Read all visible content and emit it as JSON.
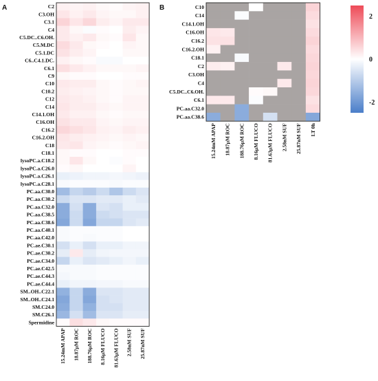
{
  "chart_data": [
    {
      "type": "heatmap",
      "panel_label": "A",
      "rows": [
        "C2",
        "C3.OH",
        "C3.1",
        "C4",
        "C5.DC..C6.OH.",
        "C5.M.DC",
        "C5.1.DC",
        "C6..C4.1.DC.",
        "C6.1",
        "C9",
        "C10",
        "C10.2",
        "C12",
        "C14",
        "C14.1.OH",
        "C16.OH",
        "C16.2",
        "C16.2.OH",
        "C18",
        "C18.1",
        "lysoPC.a.C18.2",
        "lysoPC.a.C26.0",
        "lysoPC.a.C26.1",
        "lysoPC.a.C28.1",
        "PC.aa.C30.0",
        "PC.aa.C30.2",
        "PC.aa.C32.0",
        "PC.aa.C38.5",
        "PC.aa.C38.6",
        "PC.aa.C40.1",
        "PC.aa.C42.0",
        "PC.ae.C30.1",
        "PC.ae.C30.2",
        "PC.ae.C34.0",
        "PC.ae.C42.5",
        "PC.ae.C44.3",
        "PC.ae.C44.4",
        "SM..OH..C22.1",
        "SM..OH..C24.1",
        "SM.C24.0",
        "SM.C26.1",
        "Spermidine"
      ],
      "columns": [
        "15.24mM APAP",
        "18.87µM ROC",
        "188.76µM ROC",
        "8.16µM FLUCO",
        "81.63µM FLUCO",
        "2.58nM SUF",
        "25.87nM SUF"
      ],
      "values": [
        [
          0.2,
          0.15,
          0.2,
          0.1,
          0.05,
          0.15,
          0.2
        ],
        [
          0.35,
          0.2,
          0.3,
          0.15,
          0.1,
          0.1,
          0.2
        ],
        [
          0.6,
          0.35,
          0.55,
          0.25,
          0.15,
          0.3,
          0.3
        ],
        [
          0.3,
          0.1,
          -0.05,
          0.05,
          0,
          0.25,
          0.15
        ],
        [
          0.3,
          0.2,
          0.3,
          0.1,
          0.05,
          0.35,
          0.1
        ],
        [
          0.5,
          0.3,
          0.1,
          0.05,
          0,
          0.15,
          0.1
        ],
        [
          0.4,
          0.25,
          0.15,
          0,
          0,
          0.1,
          0.1
        ],
        [
          0.2,
          0.1,
          0.05,
          -0.1,
          -0.1,
          0,
          0
        ],
        [
          0.45,
          0.3,
          0.2,
          0.1,
          0.1,
          0.1,
          0.15
        ],
        [
          0.1,
          0.05,
          0.05,
          0,
          0,
          0.05,
          0.05
        ],
        [
          0.3,
          0.25,
          0.25,
          0.1,
          0.05,
          0.1,
          0.15
        ],
        [
          0.25,
          0.2,
          0.15,
          0.1,
          0.05,
          0.1,
          0.1
        ],
        [
          0.3,
          0.25,
          0.2,
          0.1,
          0.05,
          0.15,
          0.15
        ],
        [
          0.35,
          0.25,
          0.25,
          0.15,
          0.1,
          0.15,
          0.15
        ],
        [
          0.3,
          0.2,
          0.2,
          0.1,
          0.05,
          0.1,
          0.1
        ],
        [
          0.4,
          0.3,
          0.3,
          0.15,
          0.1,
          0.15,
          0.15
        ],
        [
          0.55,
          0.45,
          0.35,
          0.2,
          0.15,
          0.25,
          0.2
        ],
        [
          0.35,
          0.25,
          0.2,
          0.15,
          0.1,
          0.15,
          0.1
        ],
        [
          0.3,
          0.35,
          0.15,
          0.1,
          0.05,
          0.1,
          0.15
        ],
        [
          0.1,
          0.05,
          0.05,
          0,
          0,
          0.05,
          0.05
        ],
        [
          0.1,
          0.35,
          0.1,
          0,
          -0.05,
          0.05,
          0
        ],
        [
          0.05,
          0.1,
          0,
          0,
          0,
          0.15,
          0
        ],
        [
          -0.3,
          -0.25,
          -0.2,
          -0.2,
          -0.15,
          -0.2,
          -0.25
        ],
        [
          -0.1,
          -0.05,
          -0.05,
          -0.05,
          -0.1,
          -0.05,
          -0.05
        ],
        [
          -1.3,
          -0.8,
          -1.0,
          -0.7,
          -1.1,
          -0.7,
          -0.5
        ],
        [
          -0.7,
          -0.5,
          -0.5,
          -0.4,
          -0.4,
          -0.3,
          -0.4
        ],
        [
          -1.6,
          -0.6,
          -1.6,
          -0.5,
          -0.6,
          -0.3,
          -0.3
        ],
        [
          -1.6,
          -0.7,
          -1.6,
          -0.7,
          -0.6,
          -0.5,
          -0.5
        ],
        [
          -1.7,
          -0.7,
          -1.7,
          -0.8,
          -0.8,
          -0.5,
          -0.4
        ],
        [
          -0.1,
          -0.05,
          -0.05,
          -0.05,
          -0.05,
          0,
          0
        ],
        [
          -0.1,
          -0.05,
          -0.1,
          -0.05,
          -0.05,
          0,
          0
        ],
        [
          -0.6,
          -0.3,
          -0.6,
          -0.3,
          -0.3,
          -0.2,
          -0.2
        ],
        [
          -0.35,
          0.3,
          -0.35,
          -0.2,
          -0.15,
          -0.15,
          -0.15
        ],
        [
          -0.8,
          -0.3,
          -0.5,
          -0.4,
          -0.3,
          -0.2,
          -0.3
        ],
        [
          -0.1,
          -0.1,
          -0.1,
          -0.05,
          -0.05,
          -0.05,
          -0.05
        ],
        [
          -0.15,
          -0.1,
          -0.1,
          -0.05,
          -0.05,
          -0.05,
          -0.05
        ],
        [
          -0.3,
          -0.2,
          -0.2,
          -0.15,
          -0.15,
          -0.1,
          -0.1
        ],
        [
          -1.5,
          -0.8,
          -1.6,
          -0.5,
          -0.5,
          -0.4,
          -0.4
        ],
        [
          -1.7,
          -0.8,
          -1.7,
          -0.6,
          -0.5,
          -0.4,
          -0.4
        ],
        [
          -1.6,
          -0.8,
          -1.5,
          -0.6,
          -0.6,
          -0.4,
          -0.4
        ],
        [
          -1.4,
          -0.6,
          -1.3,
          -0.5,
          -0.5,
          -0.35,
          -0.35
        ],
        [
          0.05,
          0.45,
          0.3,
          0.1,
          0.05,
          0.05,
          0.05
        ]
      ],
      "missing_color": "#a9a4a3"
    },
    {
      "type": "heatmap",
      "panel_label": "B",
      "rows": [
        "C10",
        "C14",
        "C14.1.OH",
        "C16.OH",
        "C16.2",
        "C16.2.OH",
        "C18.1",
        "C2",
        "C3.OH",
        "C4",
        "C5.DC..C6.OH.",
        "C6.1",
        "PC.aa.C32.0",
        "PC.aa.C38.6"
      ],
      "columns": [
        "15.24mM APAP",
        "18.87µM ROC",
        "188.76µM ROC",
        "8.16µM FLUCO",
        "81.63µM FLUCO",
        "2.58nM SUF",
        "25.87nM SUF",
        "LT 0h"
      ],
      "values": [
        [
          null,
          null,
          null,
          0,
          null,
          null,
          null,
          0.6
        ],
        [
          null,
          null,
          -0.05,
          null,
          null,
          null,
          null,
          0.5
        ],
        [
          null,
          null,
          null,
          null,
          null,
          null,
          null,
          0.4
        ],
        [
          0.35,
          0.3,
          null,
          null,
          null,
          null,
          null,
          0.5
        ],
        [
          0.4,
          0.4,
          null,
          null,
          null,
          null,
          null,
          0.6
        ],
        [
          0.2,
          null,
          null,
          null,
          null,
          null,
          null,
          0.5
        ],
        [
          null,
          null,
          -0.1,
          null,
          null,
          null,
          null,
          0.55
        ],
        [
          0.25,
          0.2,
          null,
          null,
          null,
          0.3,
          null,
          0.6
        ],
        [
          null,
          null,
          null,
          null,
          null,
          null,
          null,
          0.55
        ],
        [
          null,
          null,
          null,
          null,
          null,
          0.3,
          null,
          0.6
        ],
        [
          null,
          null,
          null,
          0.05,
          0.1,
          null,
          null,
          0.55
        ],
        [
          0.3,
          0.3,
          null,
          -0.05,
          null,
          null,
          null,
          0.4
        ],
        [
          null,
          null,
          -1.6,
          null,
          null,
          null,
          null,
          0.5
        ],
        [
          -1.6,
          null,
          -1.6,
          null,
          -0.6,
          null,
          null,
          -1.7
        ]
      ],
      "missing_color": "#a9a4a3"
    }
  ],
  "colorbar": {
    "min": -2.5,
    "max": 2.5,
    "ticks": [
      {
        "value": 2,
        "label": "2"
      },
      {
        "value": 0,
        "label": "0"
      },
      {
        "value": -2,
        "label": "-2"
      }
    ],
    "colors": {
      "low": "#4a7ec9",
      "mid": "#ffffff",
      "high": "#ee4b58"
    }
  }
}
